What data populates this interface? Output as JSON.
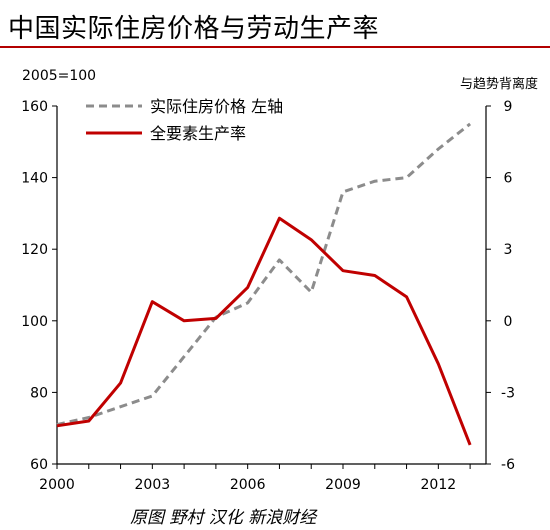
{
  "header": {
    "title": "中国实际住房价格与劳动生产率"
  },
  "footer": {
    "source": "原图 野村 汉化 新浪财经"
  },
  "colors": {
    "accent_rule": "#b30000",
    "housing": "#8c8c8c",
    "productivity": "#c00000"
  },
  "chart_data": {
    "type": "line",
    "title": "中国实际住房价格与劳动生产率",
    "left_axis": {
      "label": "2005=100",
      "ylim": [
        60,
        160
      ],
      "ticks": [
        60,
        80,
        100,
        120,
        140,
        160
      ]
    },
    "right_axis": {
      "label": "与趋势背离度",
      "ylim": [
        -6,
        9
      ],
      "ticks": [
        -6,
        -3,
        0,
        3,
        6,
        9
      ]
    },
    "x_axis": {
      "xlim": [
        2000,
        2013.5
      ],
      "ticks": [
        2000,
        2003,
        2006,
        2009,
        2012
      ]
    },
    "grid": false,
    "legend": "top-left",
    "series": [
      {
        "name": "实际住房价格 左轴",
        "axis": "left",
        "style": "dashed",
        "color": "#8c8c8c",
        "points": [
          [
            2000,
            71
          ],
          [
            2001,
            73
          ],
          [
            2002,
            76
          ],
          [
            2003,
            79
          ],
          [
            2004,
            90
          ],
          [
            2005,
            101
          ],
          [
            2006,
            105
          ],
          [
            2007,
            117
          ],
          [
            2008,
            108
          ],
          [
            2009,
            136
          ],
          [
            2010,
            139
          ],
          [
            2011,
            140
          ],
          [
            2012,
            148
          ],
          [
            2013,
            155
          ]
        ]
      },
      {
        "name": "全要素生产率",
        "axis": "right",
        "style": "solid",
        "color": "#c00000",
        "points": [
          [
            2000,
            -4.4
          ],
          [
            2001,
            -4.2
          ],
          [
            2002,
            -2.6
          ],
          [
            2003,
            0.8
          ],
          [
            2004,
            0.0
          ],
          [
            2005,
            0.1
          ],
          [
            2006,
            1.4
          ],
          [
            2007,
            4.3
          ],
          [
            2008,
            3.4
          ],
          [
            2009,
            2.1
          ],
          [
            2010,
            1.9
          ],
          [
            2011,
            1.0
          ],
          [
            2012,
            -1.8
          ],
          [
            2013,
            -5.2
          ]
        ]
      }
    ]
  }
}
